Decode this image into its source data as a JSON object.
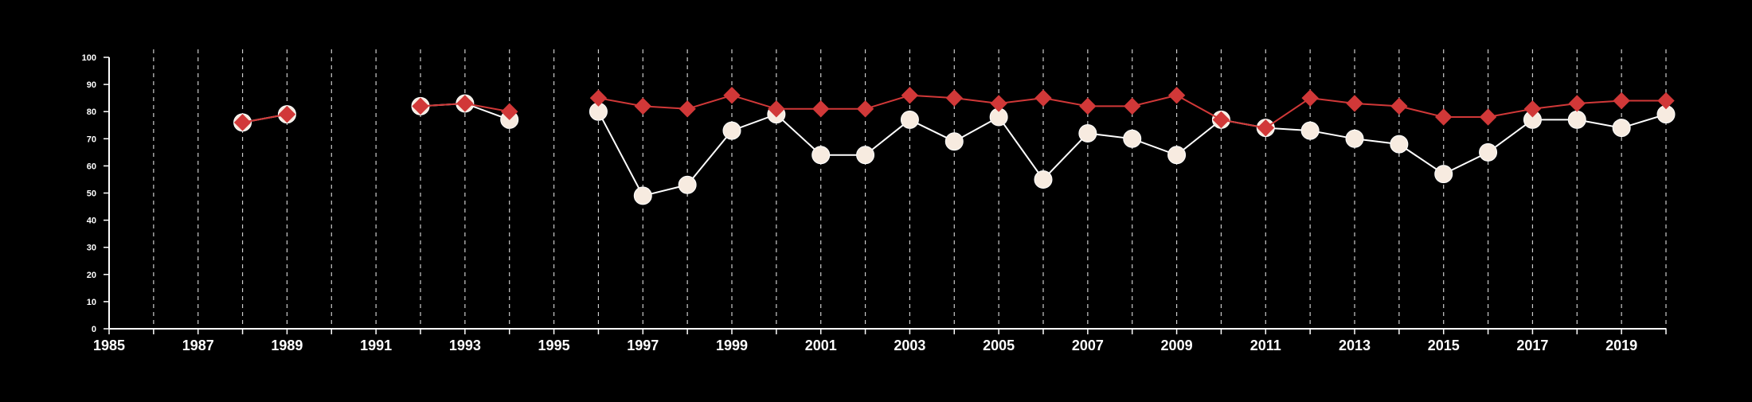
{
  "chart_data": {
    "type": "line",
    "title": "",
    "xlabel": "",
    "ylabel": "",
    "xlim": [
      1985,
      2020
    ],
    "ylim": [
      0,
      100
    ],
    "x_ticks": [
      "1985",
      "1987",
      "1989",
      "1991",
      "1993",
      "1995",
      "1997",
      "1999",
      "2001",
      "2003",
      "2005",
      "2007",
      "2009",
      "2011",
      "2013",
      "2015",
      "2017",
      "2019"
    ],
    "y_ticks": [
      "0",
      "10",
      "20",
      "30",
      "40",
      "50",
      "60",
      "70",
      "80",
      "90",
      "100"
    ],
    "grid": "vertical dashed at every year",
    "colors": {
      "background": "#000000",
      "axis": "#ffffff",
      "grid": "#cccccc",
      "series_circle": "#ffffff",
      "series_circle_fill": "#f7ebe0",
      "series_diamond": "#d13838"
    },
    "series": [
      {
        "marker": "circle",
        "color": "#ffffff",
        "fill": "#f7ebe0",
        "points": [
          [
            1988,
            76
          ],
          [
            1989,
            79
          ],
          null,
          [
            1992,
            82
          ],
          [
            1993,
            83
          ],
          [
            1994,
            77
          ],
          null,
          [
            1996,
            80
          ],
          [
            1997,
            49
          ],
          [
            1998,
            53
          ],
          [
            1999,
            73
          ],
          [
            2000,
            79
          ],
          [
            2001,
            64
          ],
          [
            2002,
            64
          ],
          [
            2003,
            77
          ],
          [
            2004,
            69
          ],
          [
            2005,
            78
          ],
          [
            2006,
            55
          ],
          [
            2007,
            72
          ],
          [
            2008,
            70
          ],
          [
            2009,
            64
          ],
          [
            2010,
            77
          ],
          [
            2011,
            74
          ],
          [
            2012,
            73
          ],
          [
            2013,
            70
          ],
          [
            2014,
            68
          ],
          [
            2015,
            57
          ],
          [
            2016,
            65
          ],
          [
            2017,
            77
          ],
          [
            2018,
            77
          ],
          [
            2019,
            74
          ],
          [
            2020,
            79
          ]
        ]
      },
      {
        "marker": "diamond",
        "color": "#d13838",
        "fill": "#d13838",
        "points": [
          [
            1988,
            76
          ],
          [
            1989,
            79
          ],
          null,
          [
            1992,
            82
          ],
          [
            1993,
            83
          ],
          [
            1994,
            80
          ],
          null,
          [
            1996,
            85
          ],
          [
            1997,
            82
          ],
          [
            1998,
            81
          ],
          [
            1999,
            86
          ],
          [
            2000,
            81
          ],
          [
            2001,
            81
          ],
          [
            2002,
            81
          ],
          [
            2003,
            86
          ],
          [
            2004,
            85
          ],
          [
            2005,
            83
          ],
          [
            2006,
            85
          ],
          [
            2007,
            82
          ],
          [
            2008,
            82
          ],
          [
            2009,
            86
          ],
          [
            2010,
            77
          ],
          [
            2011,
            74
          ],
          [
            2012,
            85
          ],
          [
            2013,
            83
          ],
          [
            2014,
            82
          ],
          [
            2015,
            78
          ],
          [
            2016,
            78
          ],
          [
            2017,
            81
          ],
          [
            2018,
            83
          ],
          [
            2019,
            84
          ],
          [
            2020,
            84
          ]
        ]
      }
    ]
  }
}
